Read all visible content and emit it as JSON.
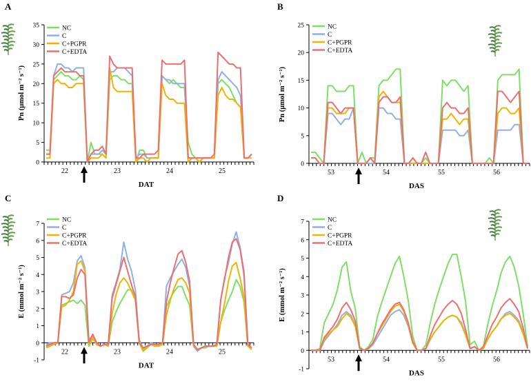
{
  "colors": {
    "NC": "#7ddf64",
    "C": "#8fb0e6",
    "PGPR": "#f0b400",
    "EDTA": "#ee6e70"
  },
  "chart_data": [
    {
      "id": "A",
      "type": "line",
      "panel_label": "A",
      "xlabel": "DAT",
      "ylabel": "Pn (µmol m⁻² s⁻¹)",
      "ylim": [
        0,
        35
      ],
      "yticks": [
        "0",
        "5",
        "10",
        "15",
        "20",
        "25",
        "30",
        "35"
      ],
      "day_labels": [
        "22",
        "23",
        "24",
        "25"
      ],
      "legend": [
        "NC",
        "C",
        "C+PGPR",
        "C+EDTA"
      ],
      "arrow_label": "",
      "series": [
        {
          "name": "NC",
          "key": "NC",
          "values": [
            3,
            3,
            21,
            22,
            23,
            22,
            22,
            21,
            21,
            22,
            21,
            0,
            5,
            2,
            2,
            2,
            1,
            21,
            22,
            22,
            21,
            21,
            20,
            20,
            0,
            3,
            3,
            1,
            1,
            1,
            1,
            22,
            21,
            20,
            21,
            20,
            19,
            19,
            5,
            2,
            1,
            0,
            1,
            1,
            1,
            1,
            20,
            21,
            20,
            19,
            17,
            15,
            14,
            1,
            1,
            2
          ]
        },
        {
          "name": "C",
          "key": "C",
          "values": [
            2,
            2,
            22,
            25,
            25,
            24,
            24,
            23,
            24,
            24,
            24,
            0,
            2,
            2,
            2,
            3,
            2,
            23,
            23,
            24,
            24,
            24,
            23,
            22,
            1,
            2,
            2,
            1,
            1,
            1,
            1,
            22,
            21,
            21,
            20,
            20,
            20,
            20,
            1,
            1,
            1,
            1,
            1,
            1,
            1,
            1,
            21,
            23,
            22,
            21,
            20,
            19,
            17,
            1,
            1,
            2
          ]
        },
        {
          "name": "C+PGPR",
          "key": "PGPR",
          "values": [
            1,
            1,
            20,
            21,
            20,
            20,
            19,
            19,
            20,
            20,
            20,
            0,
            1,
            1,
            1,
            2,
            1,
            24,
            19,
            18,
            18,
            18,
            18,
            18,
            0,
            1,
            1,
            0,
            1,
            1,
            1,
            20,
            17,
            16,
            16,
            15,
            15,
            15,
            0,
            1,
            1,
            0,
            1,
            1,
            1,
            1,
            17,
            19,
            17,
            16,
            16,
            15,
            14,
            1,
            1,
            1
          ]
        },
        {
          "name": "C+EDTA",
          "key": "EDTA",
          "values": [
            2,
            2,
            22,
            23,
            24,
            23,
            23,
            23,
            23,
            22,
            22,
            0,
            2,
            3,
            3,
            4,
            2,
            27,
            25,
            24,
            24,
            24,
            24,
            24,
            1,
            1,
            2,
            2,
            2,
            2,
            3,
            26,
            25,
            25,
            25,
            25,
            25,
            26,
            1,
            1,
            1,
            1,
            1,
            1,
            1,
            2,
            28,
            27,
            26,
            25,
            25,
            24,
            24,
            1,
            1,
            2
          ]
        }
      ]
    },
    {
      "id": "B",
      "type": "line",
      "panel_label": "B",
      "xlabel": "DAS",
      "ylabel": "Pn (µmol m⁻² s⁻¹)",
      "ylim": [
        0,
        25
      ],
      "yticks": [
        "0",
        "5",
        "10",
        "15",
        "20",
        "25"
      ],
      "day_labels": [
        "53",
        "54",
        "55",
        "56"
      ],
      "legend": [
        "NC",
        "C",
        "C+PGPR",
        "C+EDTA"
      ],
      "arrow_label": "",
      "series": [
        {
          "name": "NC",
          "key": "NC",
          "values": [
            2,
            2,
            1,
            0,
            14,
            14,
            13,
            13,
            13,
            14,
            14,
            0,
            2,
            0,
            1,
            1,
            14,
            15,
            15,
            16,
            17,
            17,
            0,
            0,
            1,
            0,
            0,
            1,
            0,
            0,
            0,
            15,
            14,
            15,
            15,
            14,
            13,
            14,
            0,
            0,
            0,
            0,
            1,
            0,
            15,
            16,
            16,
            16,
            16,
            17,
            0,
            0
          ]
        },
        {
          "name": "C",
          "key": "C",
          "values": [
            1,
            1,
            0,
            0,
            9,
            9,
            8,
            7,
            8,
            8,
            10,
            0,
            0,
            0,
            0,
            0,
            10,
            10,
            9,
            9,
            8,
            8,
            0,
            0,
            0,
            0,
            0,
            0,
            0,
            0,
            0,
            6,
            6,
            6,
            6,
            5,
            5,
            6,
            0,
            0,
            0,
            0,
            0,
            0,
            6,
            6,
            6,
            6,
            7,
            7,
            0,
            0
          ]
        },
        {
          "name": "C+PGPR",
          "key": "PGPR",
          "values": [
            1,
            1,
            0,
            0,
            10,
            10,
            9,
            9,
            9,
            10,
            10,
            0,
            0,
            0,
            1,
            0,
            12,
            13,
            12,
            11,
            11,
            11,
            0,
            0,
            0,
            0,
            0,
            0,
            0,
            0,
            0,
            8,
            8,
            9,
            8,
            7,
            8,
            8,
            0,
            0,
            0,
            0,
            0,
            0,
            9,
            10,
            10,
            9,
            9,
            10,
            0,
            0
          ]
        },
        {
          "name": "C+EDTA",
          "key": "EDTA",
          "values": [
            1,
            1,
            0,
            0,
            11,
            11,
            10,
            9,
            10,
            10,
            10,
            0,
            0,
            0,
            1,
            0,
            11,
            12,
            12,
            11,
            11,
            12,
            0,
            0,
            1,
            0,
            0,
            2,
            0,
            0,
            0,
            10,
            11,
            10,
            10,
            9,
            9,
            10,
            0,
            0,
            0,
            0,
            0,
            0,
            13,
            13,
            12,
            11,
            12,
            13,
            0,
            0
          ]
        }
      ]
    },
    {
      "id": "C",
      "type": "line",
      "panel_label": "C",
      "xlabel": "DAT",
      "ylabel": "E (mmol m⁻² s⁻¹)",
      "ylim": [
        -1,
        7
      ],
      "yticks": [
        "-1",
        "0",
        "1",
        "2",
        "3",
        "4",
        "5",
        "6",
        "7"
      ],
      "day_labels": [
        "22",
        "23",
        "24",
        "25"
      ],
      "legend": [
        "NC",
        "C",
        "C+PGPR",
        "C+EDTA"
      ],
      "arrow_label": "",
      "series": [
        {
          "name": "NC",
          "key": "NC",
          "values": [
            -0.2,
            -0.1,
            -0.1,
            0,
            2.2,
            2.3,
            2.4,
            2.5,
            2.3,
            2.5,
            2.2,
            -0.2,
            0.2,
            0,
            -0.2,
            -0.1,
            -0.2,
            1.2,
            1.8,
            2.3,
            2.7,
            3.1,
            3.1,
            2.6,
            0.2,
            -0.4,
            -0.2,
            0,
            -0.1,
            -0.2,
            -0.1,
            2.1,
            2.6,
            3.0,
            3.3,
            3.3,
            2.7,
            2.2,
            -0.2,
            -0.4,
            -0.3,
            -0.3,
            -0.2,
            -0.2,
            -0.2,
            1.2,
            1.9,
            2.5,
            3.0,
            3.7,
            3.3,
            2.4,
            -0.2,
            -0.3
          ]
        },
        {
          "name": "C",
          "key": "C",
          "values": [
            -0.1,
            0,
            0,
            0,
            2.8,
            2.9,
            3.0,
            3.5,
            4.8,
            5.1,
            4.4,
            0.2,
            0.4,
            -0.1,
            -0.2,
            -0.1,
            -0.1,
            2.8,
            3.5,
            4.3,
            5.9,
            4.9,
            4.2,
            3.1,
            0.1,
            -0.3,
            -0.2,
            0,
            -0.1,
            -0.1,
            0,
            3.3,
            3.8,
            4.2,
            4.6,
            4.9,
            4.4,
            3.3,
            -0.2,
            -0.5,
            -0.3,
            -0.2,
            -0.2,
            -0.2,
            -0.1,
            2.5,
            3.8,
            4.7,
            5.8,
            6.5,
            5.6,
            4.2,
            -0.1,
            -0.3
          ]
        },
        {
          "name": "C+PGPR",
          "key": "PGPR",
          "values": [
            -0.3,
            -0.2,
            -0.1,
            0,
            2.1,
            2.2,
            2.5,
            3.0,
            4.6,
            4.8,
            4.2,
            -0.1,
            0.3,
            -0.1,
            -0.2,
            -0.1,
            -0.2,
            1.7,
            2.8,
            3.5,
            3.8,
            3.5,
            3.0,
            2.5,
            0,
            -0.5,
            -0.3,
            -0.1,
            -0.2,
            -0.2,
            -0.1,
            1.6,
            2.5,
            3.2,
            3.7,
            3.8,
            3.5,
            2.9,
            -0.2,
            -0.4,
            -0.3,
            -0.2,
            -0.2,
            -0.2,
            -0.2,
            1.2,
            2.3,
            3.6,
            4.5,
            4.7,
            3.8,
            2.7,
            -0.2,
            -0.4
          ]
        },
        {
          "name": "C+EDTA",
          "key": "EDTA",
          "values": [
            -0.2,
            -0.1,
            0,
            0,
            2.7,
            2.7,
            2.6,
            2.8,
            3.8,
            4.3,
            4.0,
            0,
            0.5,
            0,
            -0.2,
            -0.1,
            -0.1,
            2.6,
            3.4,
            4.2,
            5.0,
            4.2,
            3.4,
            2.7,
            0,
            -0.3,
            -0.2,
            -0.1,
            -0.1,
            -0.1,
            0,
            2.4,
            3.5,
            4.4,
            5.2,
            5.4,
            4.7,
            3.6,
            -0.1,
            -0.4,
            -0.3,
            -0.2,
            -0.2,
            -0.2,
            -0.1,
            2.5,
            3.7,
            5.0,
            5.9,
            6.1,
            5.5,
            4.0,
            -0.1,
            -0.3
          ]
        }
      ]
    },
    {
      "id": "D",
      "type": "line",
      "panel_label": "D",
      "xlabel": "DAS",
      "ylabel": "E (mmol m⁻² s⁻¹)",
      "ylim": [
        -1,
        7
      ],
      "yticks": [
        "-1",
        "0",
        "1",
        "2",
        "3",
        "4",
        "5",
        "6",
        "7"
      ],
      "day_labels": [
        "53",
        "54",
        "55",
        "56"
      ],
      "legend": [
        "NC",
        "C",
        "C+PGPR",
        "C+EDTA"
      ],
      "arrow_label": "",
      "series": [
        {
          "name": "NC",
          "key": "NC",
          "values": [
            0,
            0,
            0.1,
            1.5,
            2.0,
            2.5,
            3.3,
            4.5,
            4.8,
            3.2,
            2.3,
            0.2,
            0,
            0.2,
            0.6,
            1.8,
            2.6,
            3.3,
            4.0,
            4.7,
            5.1,
            4.0,
            2.7,
            0.8,
            0,
            0,
            0.3,
            1.5,
            2.5,
            3.3,
            4.0,
            4.7,
            5.2,
            5.2,
            4.0,
            2.6,
            0.3,
            0.5,
            0,
            0.2,
            1.4,
            2.4,
            3.2,
            4.2,
            4.8,
            5.1,
            4.5,
            3.5,
            2.0,
            0.2
          ]
        },
        {
          "name": "C",
          "key": "C",
          "values": [
            0,
            0,
            0,
            0.5,
            0.8,
            1.1,
            1.4,
            1.9,
            2.1,
            1.9,
            1.4,
            0.1,
            0,
            0.1,
            0.3,
            0.7,
            1.1,
            1.5,
            1.9,
            2.1,
            2.2,
            1.9,
            1.3,
            0.4,
            0,
            0,
            0.1,
            0.6,
            1.0,
            1.3,
            1.6,
            1.8,
            1.9,
            1.8,
            1.5,
            0.9,
            0.1,
            0.2,
            0,
            0.1,
            0.6,
            1.0,
            1.3,
            1.7,
            2.0,
            2.1,
            1.9,
            1.6,
            1.0,
            0.1
          ]
        },
        {
          "name": "C+PGPR",
          "key": "PGPR",
          "values": [
            0,
            0,
            0,
            0.6,
            0.9,
            1.1,
            1.3,
            1.7,
            2.0,
            1.8,
            1.3,
            0.1,
            0,
            0.1,
            0.4,
            0.9,
            1.3,
            1.7,
            2.1,
            2.4,
            2.5,
            2.1,
            1.4,
            0.4,
            0,
            0,
            0.1,
            0.6,
            1.0,
            1.3,
            1.6,
            1.8,
            1.9,
            1.8,
            1.4,
            0.8,
            0.1,
            0.2,
            0,
            0.1,
            0.6,
            1.0,
            1.3,
            1.7,
            1.9,
            2.0,
            1.8,
            1.5,
            0.9,
            0.1
          ]
        },
        {
          "name": "C+EDTA",
          "key": "EDTA",
          "values": [
            0,
            0,
            0,
            0.7,
            1.0,
            1.3,
            1.7,
            2.3,
            2.6,
            2.2,
            1.6,
            0.1,
            0,
            0.1,
            0.4,
            0.9,
            1.4,
            1.8,
            2.2,
            2.5,
            2.6,
            2.2,
            1.5,
            0.5,
            0,
            0,
            0.1,
            0.8,
            1.4,
            1.8,
            2.2,
            2.5,
            2.7,
            2.5,
            2.0,
            1.1,
            0.1,
            0.2,
            0,
            0.2,
            0.8,
            1.4,
            1.8,
            2.3,
            2.6,
            2.8,
            2.5,
            2.1,
            1.2,
            0.1
          ]
        }
      ]
    }
  ]
}
